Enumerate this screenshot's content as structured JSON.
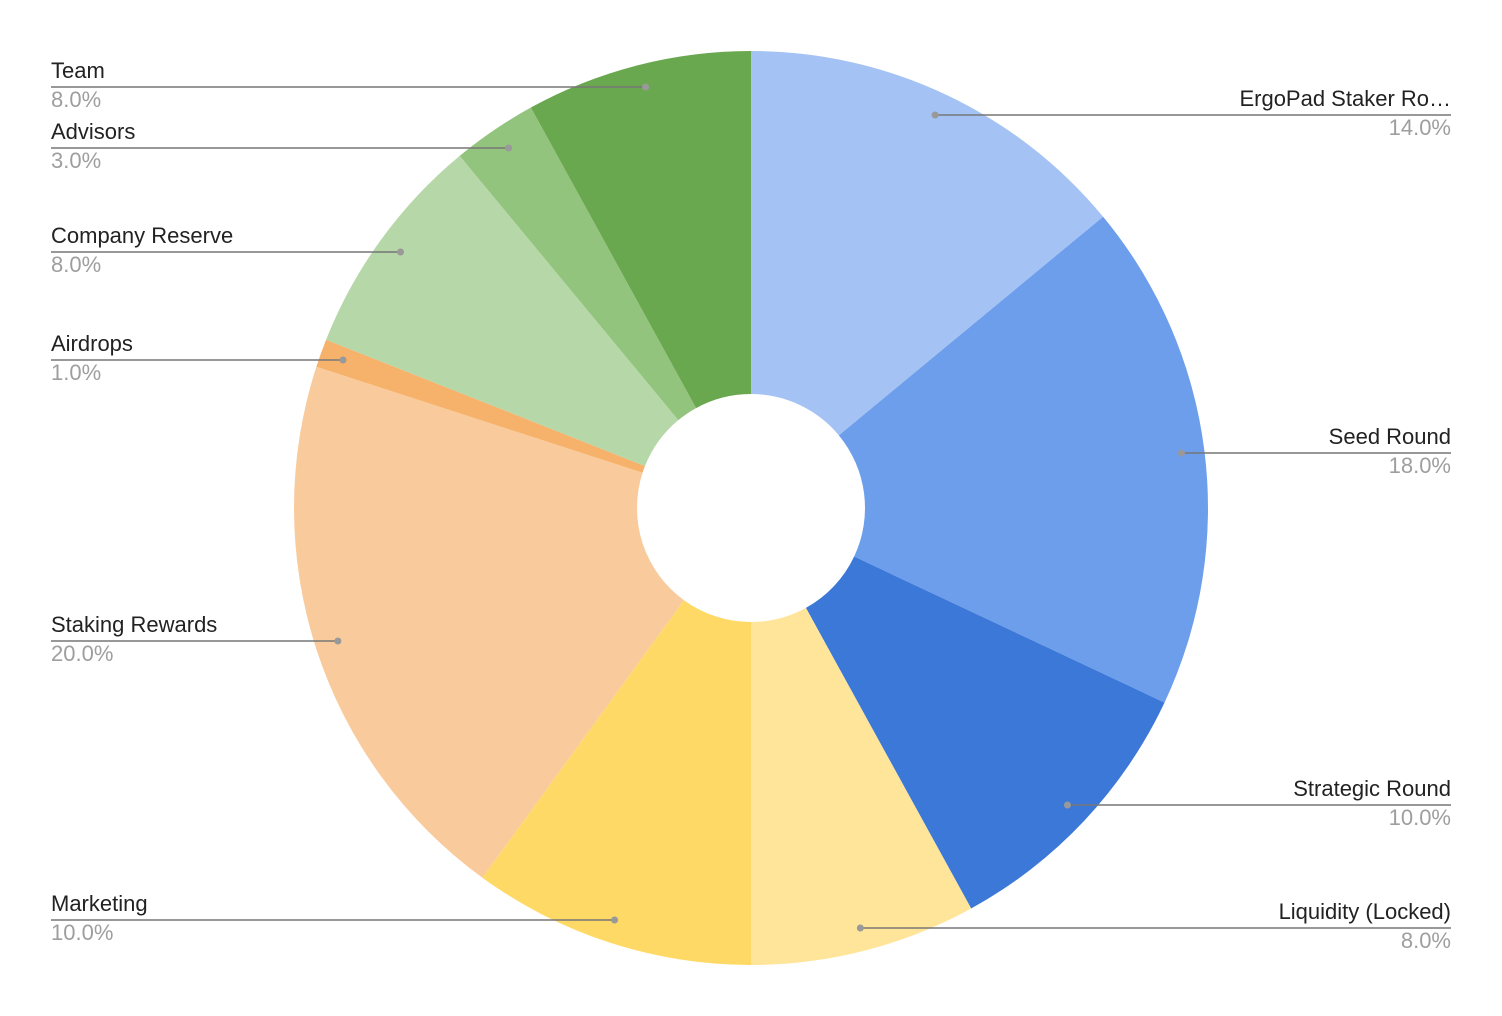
{
  "chart_data": {
    "type": "pie",
    "categories": [
      "ErgoPad Staker Ro…",
      "Seed Round",
      "Strategic Round",
      "Liquidity (Locked)",
      "Marketing",
      "Staking Rewards",
      "Airdrops",
      "Company Reserve",
      "Advisors",
      "Team"
    ],
    "values": [
      14,
      18,
      10,
      8,
      10,
      20,
      1,
      8,
      3,
      8
    ],
    "value_labels": [
      "14.0%",
      "18.0%",
      "10.0%",
      "8.0%",
      "10.0%",
      "20.0%",
      "1.0%",
      "8.0%",
      "3.0%",
      "8.0%"
    ],
    "colors": [
      "#a4c2f4",
      "#6d9eeb",
      "#3c78d8",
      "#ffe599",
      "#ffd966",
      "#f9cb9c",
      "#f6b26b",
      "#b6d7a8",
      "#93c47d",
      "#6aa84f"
    ]
  }
}
